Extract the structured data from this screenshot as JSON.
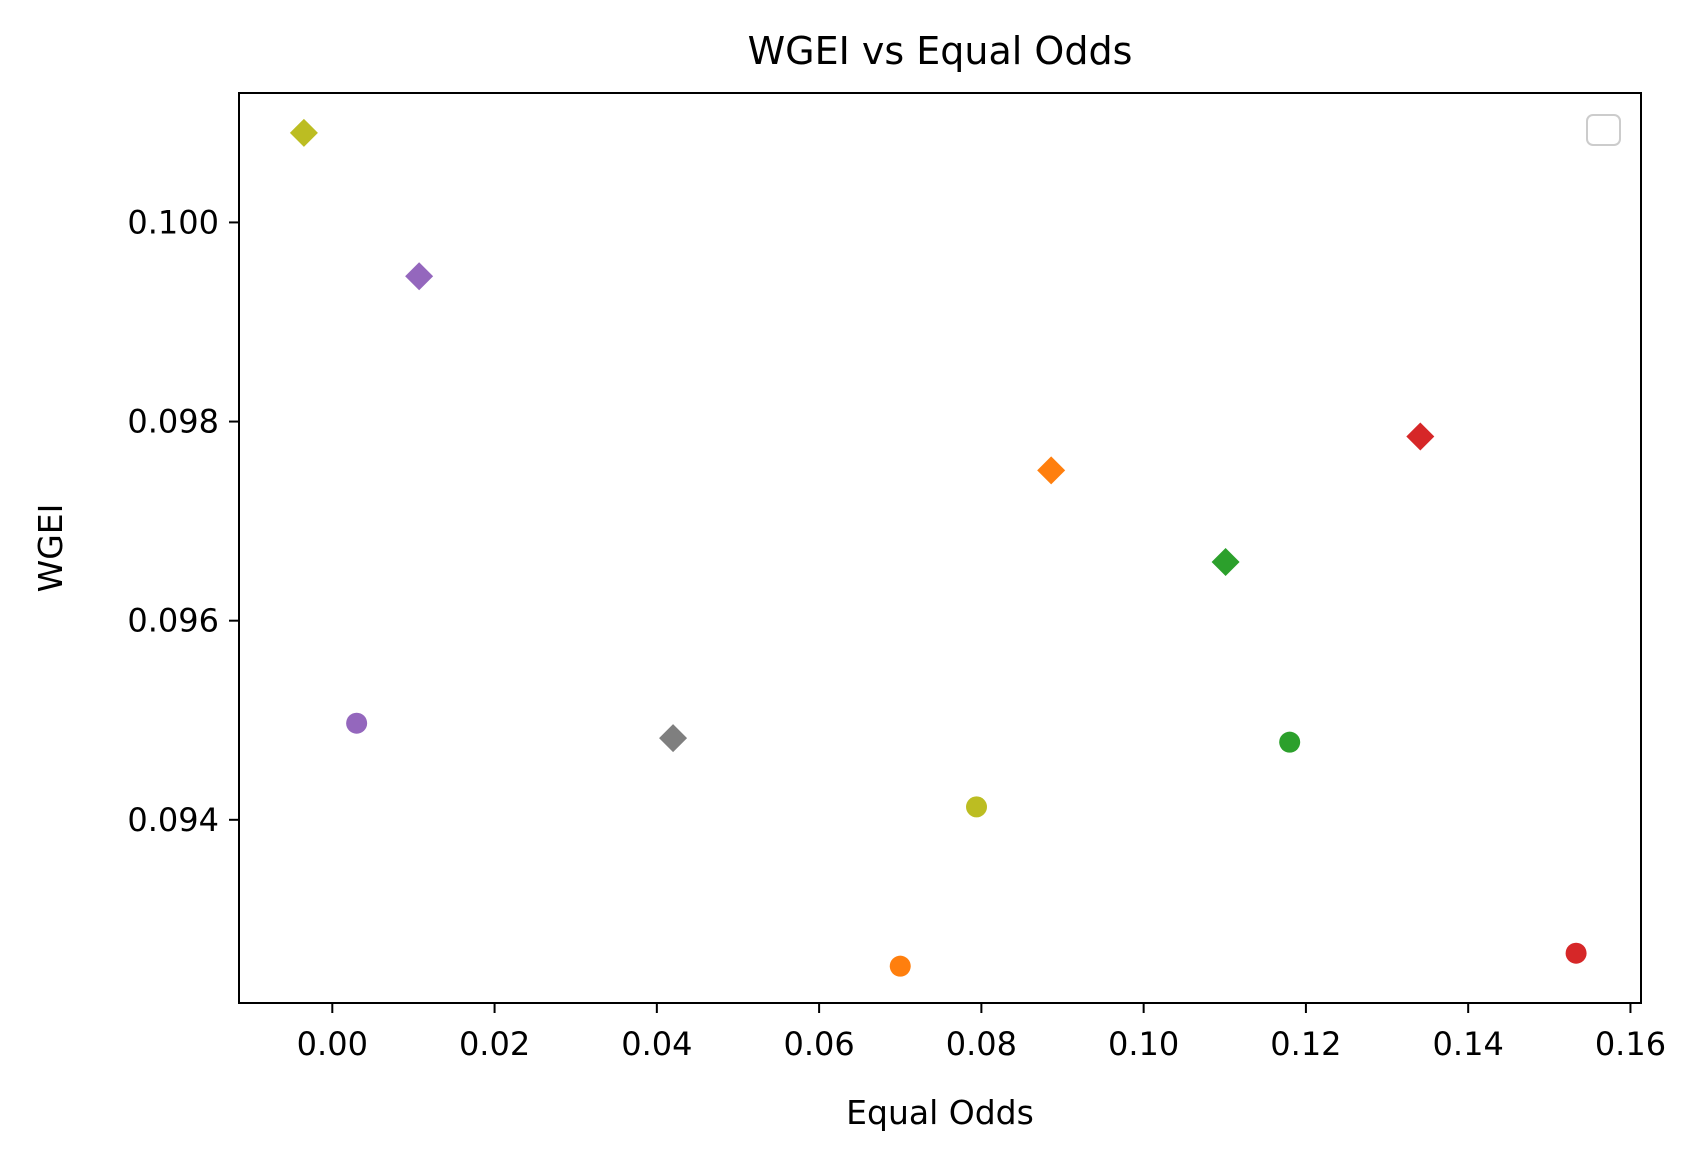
{
  "chart_data": {
    "type": "scatter",
    "title": "WGEI vs Equal Odds",
    "xlabel": "Equal Odds",
    "ylabel": "WGEI",
    "xlim": [
      -0.0115,
      0.1613
    ],
    "ylim": [
      0.09216,
      0.1013
    ],
    "xticks": [
      "0.00",
      "0.02",
      "0.04",
      "0.06",
      "0.08",
      "0.10",
      "0.12",
      "0.14",
      "0.16"
    ],
    "xtick_values": [
      0.0,
      0.02,
      0.04,
      0.06,
      0.08,
      0.1,
      0.12,
      0.14,
      0.16
    ],
    "yticks": [
      "0.094",
      "0.096",
      "0.098",
      "0.100"
    ],
    "ytick_values": [
      0.094,
      0.096,
      0.098,
      0.1
    ],
    "grid": false,
    "legend": {
      "placement": "top-right",
      "entries": []
    },
    "points": [
      {
        "x": -0.0035,
        "y": 0.1009,
        "marker": "diamond",
        "color": "#bcbd22"
      },
      {
        "x": 0.0107,
        "y": 0.09946,
        "marker": "diamond",
        "color": "#9467bd"
      },
      {
        "x": 0.0886,
        "y": 0.09751,
        "marker": "diamond",
        "color": "#ff7f0e"
      },
      {
        "x": 0.1341,
        "y": 0.09785,
        "marker": "diamond",
        "color": "#d62728"
      },
      {
        "x": 0.1101,
        "y": 0.09659,
        "marker": "diamond",
        "color": "#2ca02c"
      },
      {
        "x": 0.042,
        "y": 0.09482,
        "marker": "diamond",
        "color": "#7f7f7f"
      },
      {
        "x": 0.003,
        "y": 0.09497,
        "marker": "circle",
        "color": "#9467bd"
      },
      {
        "x": 0.118,
        "y": 0.09478,
        "marker": "circle",
        "color": "#2ca02c"
      },
      {
        "x": 0.0794,
        "y": 0.09413,
        "marker": "circle",
        "color": "#bcbd22"
      },
      {
        "x": 0.07,
        "y": 0.09253,
        "marker": "circle",
        "color": "#ff7f0e"
      },
      {
        "x": 0.1533,
        "y": 0.09266,
        "marker": "circle",
        "color": "#d62728"
      }
    ]
  }
}
